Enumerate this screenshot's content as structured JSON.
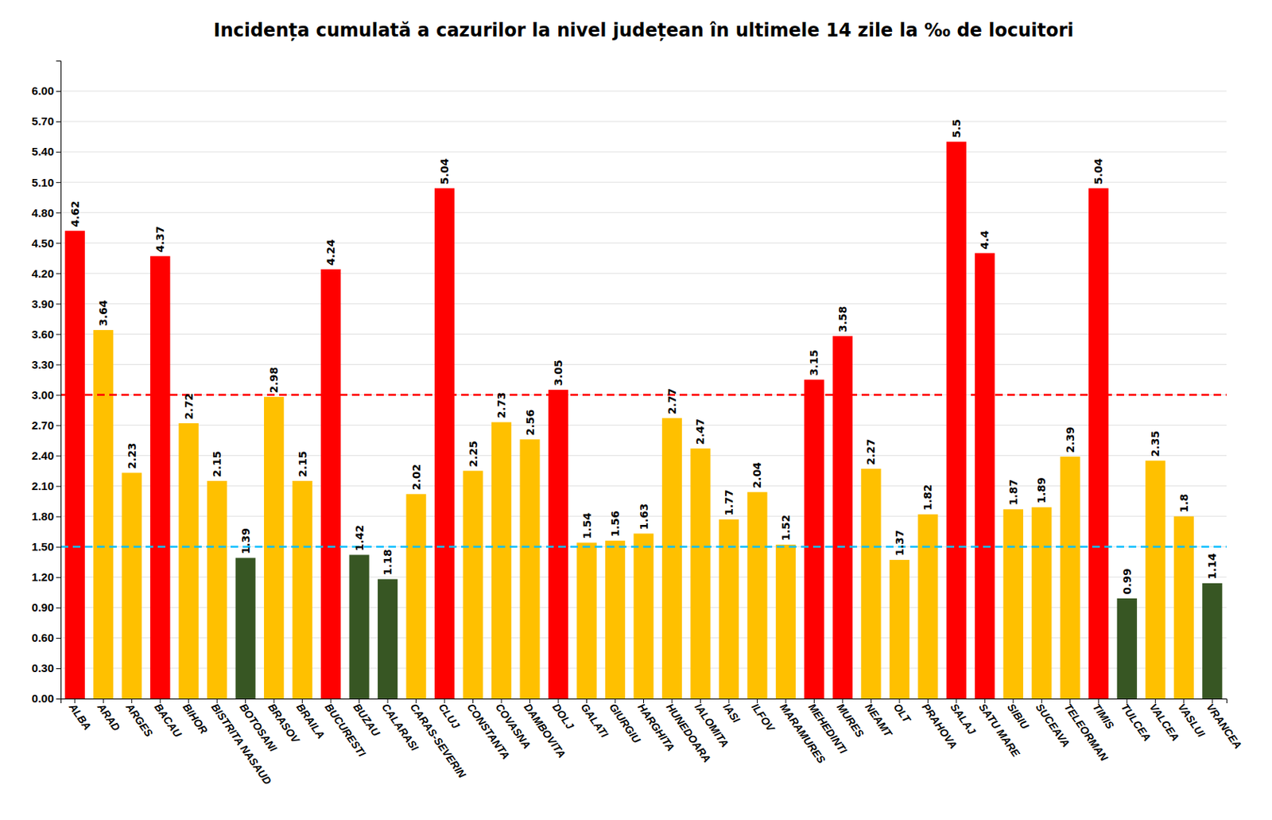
{
  "chart_data": {
    "type": "bar",
    "title": "Incidența cumulată a cazurilor la nivel județean în ultimele 14 zile la ‰ de locuitori",
    "categories": [
      "ALBA",
      "ARAD",
      "ARGES",
      "BACAU",
      "BIHOR",
      "BISTRITA NASAUD",
      "BOTOSANI",
      "BRASOV",
      "BRAILA",
      "BUCURESTI",
      "BUZAU",
      "CALARASI",
      "CARAS-SEVERIN",
      "CLUJ",
      "CONSTANTA",
      "COVASNA",
      "DAMBOVITA",
      "DOLJ",
      "GALATI",
      "GIURGIU",
      "HARGHITA",
      "HUNEDOARA",
      "IALOMITA",
      "IASI",
      "ILFOV",
      "MARAMURES",
      "MEHEDINTI",
      "MURES",
      "NEAMT",
      "OLT",
      "PRAHOVA",
      "SALAJ",
      "SATU MARE",
      "SIBIU",
      "SUCEAVA",
      "TELEORMAN",
      "TIMIS",
      "TULCEA",
      "VALCEA",
      "VASLUI",
      "VRANCEA"
    ],
    "values": [
      4.62,
      3.64,
      2.23,
      4.37,
      2.72,
      2.15,
      1.39,
      2.98,
      2.15,
      4.24,
      1.42,
      1.18,
      2.02,
      5.04,
      2.25,
      2.73,
      2.56,
      3.05,
      1.54,
      1.56,
      1.63,
      2.77,
      2.47,
      1.77,
      2.04,
      1.52,
      3.15,
      3.58,
      2.27,
      1.37,
      1.82,
      5.5,
      4.4,
      1.87,
      1.89,
      2.39,
      5.04,
      0.99,
      2.35,
      1.8,
      1.14
    ],
    "colors": [
      "#FF0000",
      "#FFC000",
      "#FFC000",
      "#FF0000",
      "#FFC000",
      "#FFC000",
      "#375623",
      "#FFC000",
      "#FFC000",
      "#FF0000",
      "#375623",
      "#375623",
      "#FFC000",
      "#FF0000",
      "#FFC000",
      "#FFC000",
      "#FFC000",
      "#FF0000",
      "#FFC000",
      "#FFC000",
      "#FFC000",
      "#FFC000",
      "#FFC000",
      "#FFC000",
      "#FFC000",
      "#FFC000",
      "#FF0000",
      "#FF0000",
      "#FFC000",
      "#FFC000",
      "#FFC000",
      "#FF0000",
      "#FF0000",
      "#FFC000",
      "#FFC000",
      "#FFC000",
      "#FF0000",
      "#375623",
      "#FFC000",
      "#FFC000",
      "#375623"
    ],
    "data_labels": true,
    "lines": [
      {
        "y": 3.0,
        "color": "#FF0000",
        "line_style": "dashed"
      },
      {
        "y": 1.5,
        "color": "#00BFFF",
        "line_style": "dashed"
      }
    ],
    "ylim": [
      0,
      6.3
    ],
    "yticks": [
      {
        "value": 0.0,
        "label": "0.00"
      },
      {
        "value": 0.3,
        "label": "0.30"
      },
      {
        "value": 0.6,
        "label": "0.60"
      },
      {
        "value": 0.9,
        "label": "0.90"
      },
      {
        "value": 1.2,
        "label": "1.20"
      },
      {
        "value": 1.5,
        "label": "1.50"
      },
      {
        "value": 1.8,
        "label": "1.80"
      },
      {
        "value": 2.1,
        "label": "2.10"
      },
      {
        "value": 2.4,
        "label": "2.40"
      },
      {
        "value": 2.7,
        "label": "2.70"
      },
      {
        "value": 3.0,
        "label": "3.00"
      },
      {
        "value": 3.3,
        "label": "3.30"
      },
      {
        "value": 3.6,
        "label": "3.60"
      },
      {
        "value": 3.9,
        "label": "3.90"
      },
      {
        "value": 4.2,
        "label": "4.20"
      },
      {
        "value": 4.5,
        "label": "4.50"
      },
      {
        "value": 4.8,
        "label": "4.80"
      },
      {
        "value": 5.1,
        "label": "5.10"
      },
      {
        "value": 5.4,
        "label": "5.40"
      },
      {
        "value": 5.7,
        "label": "5.70"
      },
      {
        "value": 6.0,
        "label": "6.00"
      }
    ],
    "grid": true
  }
}
